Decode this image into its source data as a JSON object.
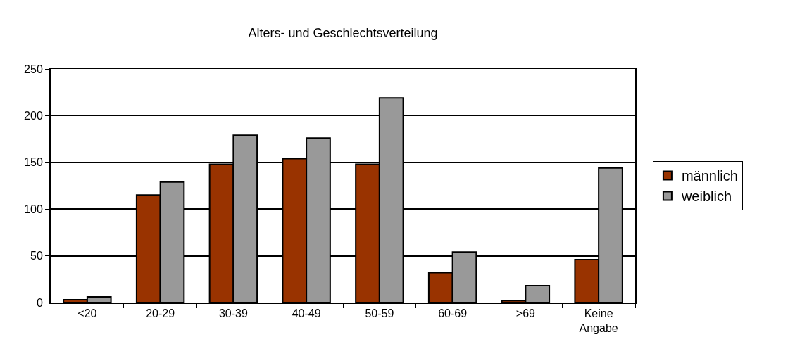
{
  "chart_data": {
    "type": "bar",
    "title": "Alters- und Geschlechtsverteilung",
    "categories": [
      "<20",
      "20-29",
      "30-39",
      "40-49",
      "50-59",
      "60-69",
      ">69",
      "Keine Angabe"
    ],
    "series": [
      {
        "name": "männlich",
        "color": "#993300",
        "values": [
          3,
          115,
          148,
          154,
          148,
          32,
          2,
          46
        ]
      },
      {
        "name": "weiblich",
        "color": "#999999",
        "values": [
          6,
          129,
          179,
          176,
          219,
          54,
          18,
          144
        ]
      }
    ],
    "ylim": [
      0,
      250
    ],
    "yticks": [
      0,
      50,
      100,
      150,
      200,
      250
    ],
    "grid": "y",
    "legend": "right"
  }
}
